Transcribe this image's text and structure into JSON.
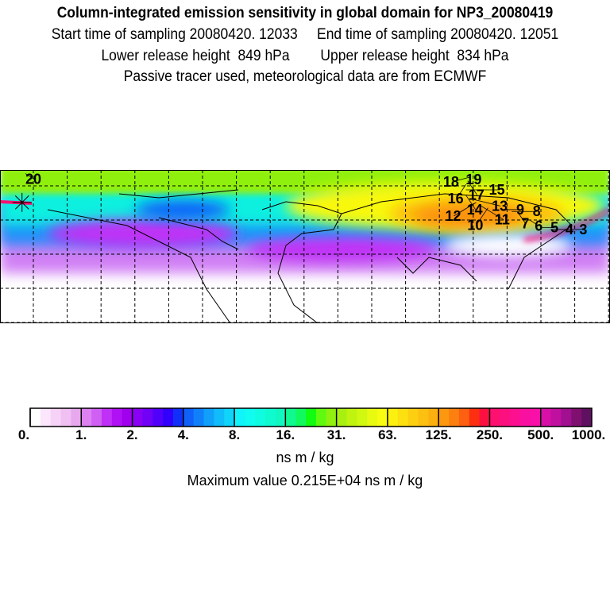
{
  "header": {
    "title": "Column-integrated emission sensitivity in global domain for NP3_20080419",
    "line2": "Start time of sampling 20080420. 12033     End time of sampling 20080420. 12051",
    "line3": "Lower release height  849 hPa        Upper release height  834 hPa",
    "line4": "Passive tracer used, meteorological data are from ECMWF"
  },
  "chart_data": {
    "type": "heatmap",
    "title": "Column-integrated emission sensitivity in global domain for NP3_20080419",
    "projection": "global lat-lon map with dashed graticule",
    "colorbar": {
      "tick_labels": [
        "0.",
        "1.",
        "2.",
        "4.",
        "8.",
        "16.",
        "31.",
        "63.",
        "125.",
        "250.",
        "500.",
        "1000."
      ],
      "segment_colors": [
        [
          "#ffffff",
          "#fbe6fb",
          "#f6d2f6",
          "#f0c0f2",
          "#e8a8ee"
        ],
        [
          "#dd80f0",
          "#d060f4",
          "#c030f6",
          "#b010f4",
          "#a000ee"
        ],
        [
          "#8a00f4",
          "#7000f6",
          "#5000fa",
          "#3000fc",
          "#1030fa"
        ],
        [
          "#1060fa",
          "#1080fa",
          "#10a0fa",
          "#10bcfa",
          "#10d4fa"
        ],
        [
          "#10f4fa",
          "#10fcf0",
          "#10fce0",
          "#10fad0",
          "#10f8c0"
        ],
        [
          "#10f890",
          "#10fa60",
          "#10fc10",
          "#60fa10",
          "#90f010"
        ],
        [
          "#a8f010",
          "#c0f410",
          "#d0f810",
          "#e8fa10",
          "#f8fc10"
        ],
        [
          "#fcf010",
          "#fce010",
          "#fcd010",
          "#fcc010",
          "#fcb010"
        ],
        [
          "#fc9810",
          "#fc8010",
          "#fc6010",
          "#fc3010",
          "#fc1040"
        ],
        [
          "#fc1070",
          "#fc1080",
          "#fc1090",
          "#fa10a0",
          "#f810a8"
        ],
        [
          "#d810a8",
          "#c010a0",
          "#a01090",
          "#801070",
          "#601060"
        ]
      ],
      "units": "ns m / kg"
    },
    "max_value_text": "Maximum value  0.215E+04 ns m / kg",
    "trajectory_labels": [
      {
        "text": "20",
        "lon": -165,
        "lat": 88
      },
      {
        "text": "19",
        "lon": 100,
        "lat": 87
      },
      {
        "text": "18",
        "lon": 97,
        "lat": 86
      },
      {
        "text": "17",
        "lon": 96,
        "lat": 84
      },
      {
        "text": "16",
        "lon": 95,
        "lat": 82
      },
      {
        "text": "15",
        "lon": 95,
        "lat": 79
      },
      {
        "text": "14",
        "lon": 95,
        "lat": 76
      },
      {
        "text": "13",
        "lon": 98,
        "lat": 74
      },
      {
        "text": "12",
        "lon": 101,
        "lat": 72
      },
      {
        "text": "11",
        "lon": 104,
        "lat": 70
      },
      {
        "text": "10",
        "lon": 108,
        "lat": 69
      },
      {
        "text": "9",
        "lon": 116,
        "lat": 68
      },
      {
        "text": "8",
        "lon": 122,
        "lat": 67
      },
      {
        "text": "7",
        "lon": 126,
        "lat": 66
      },
      {
        "text": "6",
        "lon": 133,
        "lat": 62
      },
      {
        "text": "5",
        "lon": 140,
        "lat": 58
      },
      {
        "text": "4",
        "lon": 145,
        "lat": 57
      },
      {
        "text": "3",
        "lon": 157,
        "lat": 57
      }
    ],
    "release_site": {
      "lon": -167,
      "lat": 72
    }
  }
}
